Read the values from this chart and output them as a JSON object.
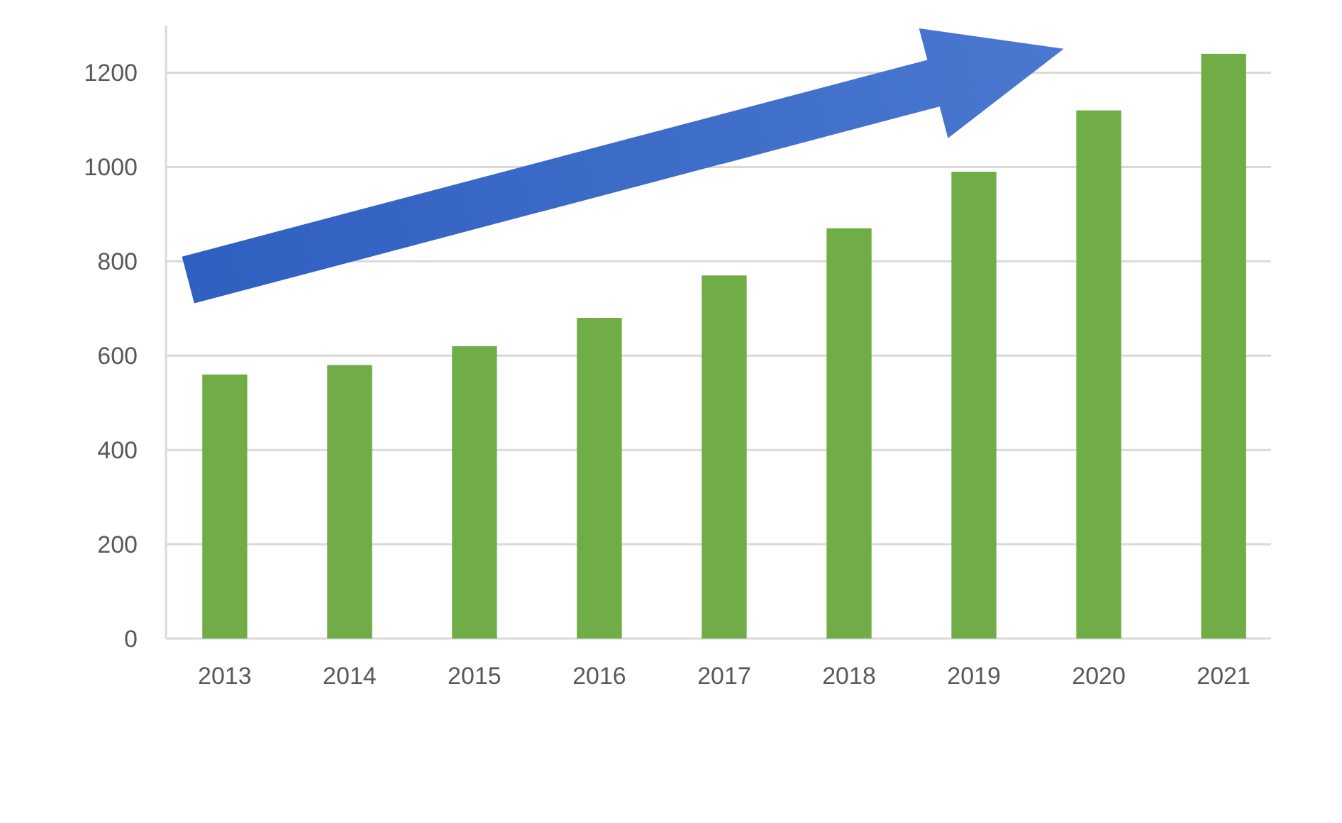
{
  "chart_data": {
    "type": "bar",
    "categories": [
      "2013",
      "2014",
      "2015",
      "2016",
      "2017",
      "2018",
      "2019",
      "2020",
      "2021"
    ],
    "values": [
      560,
      580,
      620,
      680,
      770,
      870,
      990,
      1120,
      1240
    ],
    "color": "#70ad47",
    "ylim": [
      0,
      1300
    ],
    "yticks": [
      0,
      200,
      400,
      600,
      800,
      1000,
      1200
    ],
    "grid": "y"
  }
}
